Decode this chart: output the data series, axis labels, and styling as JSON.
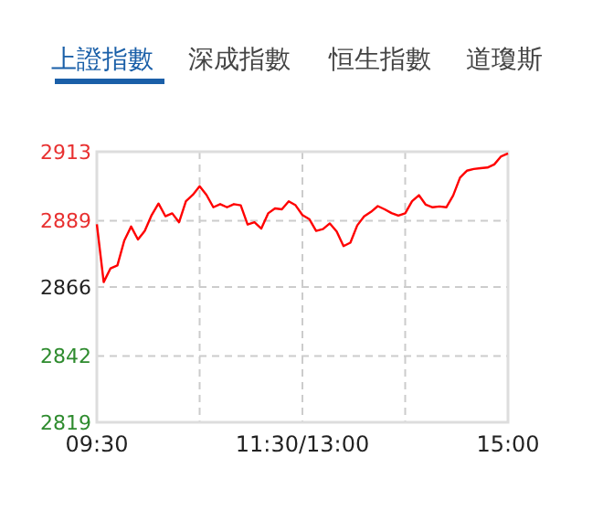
{
  "chart_data": {
    "type": "line",
    "annotations": [
      "上證指數",
      "深成指數",
      "恒生指數",
      "道瓊斯"
    ],
    "categories": [
      "09:30",
      null,
      null,
      null,
      null,
      null,
      null,
      null,
      null,
      null,
      null,
      null,
      null,
      null,
      null,
      null,
      null,
      null,
      null,
      null,
      null,
      null,
      null,
      null,
      null,
      null,
      null,
      null,
      null,
      null,
      "11:30/13:00",
      null,
      null,
      null,
      null,
      null,
      null,
      null,
      null,
      null,
      null,
      null,
      null,
      null,
      null,
      null,
      null,
      null,
      null,
      null,
      null,
      null,
      null,
      null,
      null,
      null,
      null,
      null,
      null,
      null,
      "15:00"
    ],
    "series": [
      {
        "color": "#ff0000",
        "values": [
          2887.8,
          2867.7,
          2872.5,
          2873.5,
          2882.1,
          2887,
          2882.5,
          2885.5,
          2891,
          2895,
          2890.6,
          2891.6,
          2888.5,
          2895.8,
          2898,
          2901,
          2898,
          2893.7,
          2894.8,
          2893.7,
          2894.8,
          2894.4,
          2887.7,
          2888.5,
          2886.3,
          2891.6,
          2893.3,
          2893,
          2895.8,
          2894.4,
          2891,
          2889.6,
          2885.5,
          2886.1,
          2888.1,
          2885.3,
          2880.2,
          2881.4,
          2887.4,
          2890.5,
          2892.1,
          2894.1,
          2893,
          2891.7,
          2890.8,
          2891.6,
          2895.8,
          2897.9,
          2894.6,
          2893.7,
          2894,
          2893.7,
          2897.8,
          2904,
          2906.4,
          2907,
          2907.3,
          2907.5,
          2908.6,
          2911.4,
          2912.4
        ]
      }
    ],
    "ylim": [
      2819,
      2913
    ],
    "yticks": [
      2819,
      2842,
      2866,
      2889,
      2913
    ],
    "grid": true,
    "line_style": "solid"
  }
}
